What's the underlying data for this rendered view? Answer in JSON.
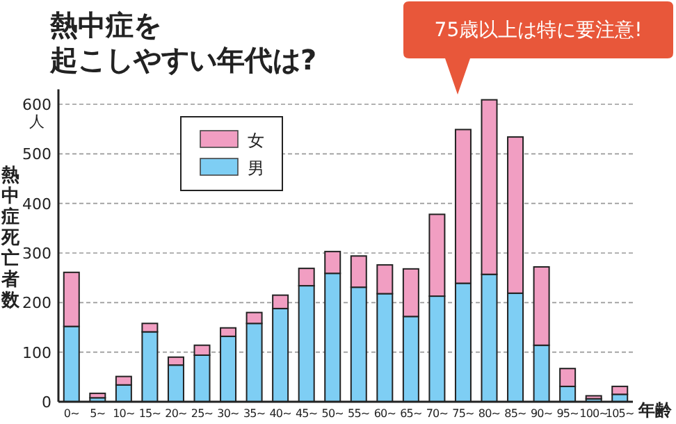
{
  "chart_data": {
    "type": "bar",
    "title": "熱中症を起こしやすい年代は?",
    "ylabel": "熱中症死亡者数",
    "xlabel": "年齢",
    "annotations": [
      "人",
      "75歳以上は特に要注意!"
    ],
    "categories": [
      "0~",
      "5~",
      "10~",
      "15~",
      "20~",
      "25~",
      "30~",
      "35~",
      "40~",
      "45~",
      "50~",
      "55~",
      "60~",
      "65~",
      "70~",
      "75~",
      "80~",
      "85~",
      "90~",
      "95~",
      "100~",
      "105~"
    ],
    "stacked": true,
    "series": [
      {
        "name": "男",
        "color": "#7ecef4",
        "values": [
          152,
          8,
          34,
          141,
          74,
          94,
          132,
          158,
          188,
          234,
          259,
          231,
          218,
          172,
          213,
          239,
          257,
          219,
          114,
          31,
          6,
          15
        ]
      },
      {
        "name": "女",
        "color": "#f19ec2",
        "values": [
          109,
          9,
          17,
          17,
          16,
          20,
          17,
          22,
          27,
          35,
          44,
          63,
          58,
          96,
          165,
          310,
          352,
          315,
          158,
          36,
          6,
          16
        ]
      }
    ],
    "ylim": [
      0,
      630
    ],
    "yticks": [
      0,
      100,
      200,
      300,
      400,
      500,
      600
    ],
    "grid": "y",
    "legend": "top left"
  }
}
